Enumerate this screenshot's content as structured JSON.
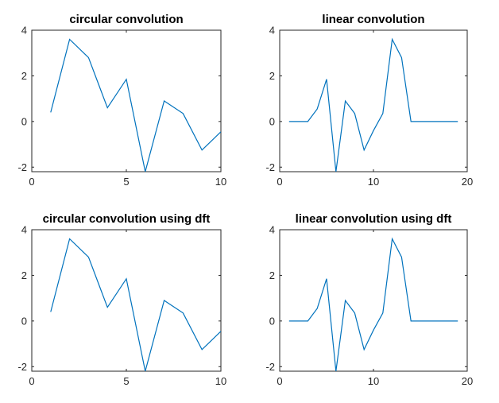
{
  "chart_data": [
    {
      "type": "line",
      "title": "circular convolution",
      "xlabel": "",
      "ylabel": "",
      "xlim": [
        0,
        10
      ],
      "ylim": [
        -2.2,
        4
      ],
      "xticks": [
        0,
        5,
        10
      ],
      "yticks": [
        -2,
        0,
        2,
        4
      ],
      "color": "#0072BD",
      "series": [
        {
          "x": [
            1,
            2,
            3,
            4,
            5,
            6,
            7,
            8,
            9,
            10
          ],
          "y": [
            0.4,
            3.6,
            2.8,
            0.6,
            1.85,
            -2.2,
            0.9,
            0.35,
            -1.25,
            -0.45
          ]
        }
      ]
    },
    {
      "type": "line",
      "title": "linear convolution",
      "xlabel": "",
      "ylabel": "",
      "xlim": [
        0,
        20
      ],
      "ylim": [
        -2.2,
        4
      ],
      "xticks": [
        0,
        10,
        20
      ],
      "yticks": [
        -2,
        0,
        2,
        4
      ],
      "color": "#0072BD",
      "series": [
        {
          "x": [
            1,
            2,
            3,
            4,
            5,
            6,
            7,
            8,
            9,
            10,
            11,
            12,
            13,
            14,
            15,
            16,
            17,
            18,
            19
          ],
          "y": [
            0,
            0,
            0,
            0.55,
            1.85,
            -2.2,
            0.9,
            0.35,
            -1.25,
            -0.4,
            0.35,
            3.6,
            2.8,
            0,
            0,
            0,
            0,
            0,
            0
          ]
        }
      ]
    },
    {
      "type": "line",
      "title": "circular convolution using dft",
      "xlabel": "",
      "ylabel": "",
      "xlim": [
        0,
        10
      ],
      "ylim": [
        -2.2,
        4
      ],
      "xticks": [
        0,
        5,
        10
      ],
      "yticks": [
        -2,
        0,
        2,
        4
      ],
      "color": "#0072BD",
      "series": [
        {
          "x": [
            1,
            2,
            3,
            4,
            5,
            6,
            7,
            8,
            9,
            10
          ],
          "y": [
            0.4,
            3.6,
            2.8,
            0.6,
            1.85,
            -2.2,
            0.9,
            0.35,
            -1.25,
            -0.45
          ]
        }
      ]
    },
    {
      "type": "line",
      "title": "linear convolution using dft",
      "xlabel": "",
      "ylabel": "",
      "xlim": [
        0,
        20
      ],
      "ylim": [
        -2.2,
        4
      ],
      "xticks": [
        0,
        10,
        20
      ],
      "yticks": [
        -2,
        0,
        2,
        4
      ],
      "color": "#0072BD",
      "series": [
        {
          "x": [
            1,
            2,
            3,
            4,
            5,
            6,
            7,
            8,
            9,
            10,
            11,
            12,
            13,
            14,
            15,
            16,
            17,
            18,
            19
          ],
          "y": [
            0,
            0,
            0,
            0.55,
            1.85,
            -2.2,
            0.9,
            0.35,
            -1.25,
            -0.4,
            0.35,
            3.6,
            2.8,
            0,
            0,
            0,
            0,
            0,
            0
          ]
        }
      ]
    }
  ]
}
